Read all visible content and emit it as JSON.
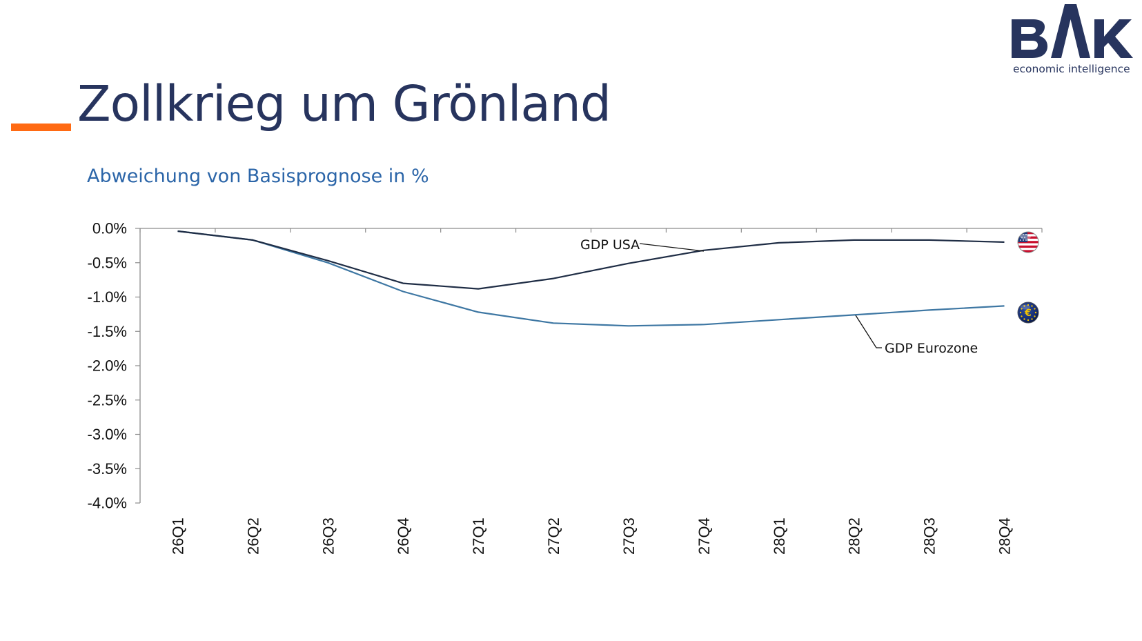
{
  "slide": {
    "title": "Zollkrieg um Grönland",
    "subtitle": "Abweichung von Basisprognose in %",
    "logo": {
      "text": "BAK",
      "tagline": "economic intelligence",
      "color": "#27345e"
    },
    "accent_color": "#ff6a13"
  },
  "chart_data": {
    "type": "line",
    "title": "",
    "xlabel": "",
    "ylabel": "",
    "categories": [
      "26Q1",
      "26Q2",
      "26Q3",
      "26Q4",
      "27Q1",
      "27Q2",
      "27Q3",
      "27Q4",
      "28Q1",
      "28Q2",
      "28Q3",
      "28Q4"
    ],
    "ylim": [
      -4.0,
      0.0
    ],
    "yticks": [
      0.0,
      -0.5,
      -1.0,
      -1.5,
      -2.0,
      -2.5,
      -3.0,
      -3.5,
      -4.0
    ],
    "ytick_labels": [
      "0.0%",
      "-0.5%",
      "-1.0%",
      "-1.5%",
      "-2.0%",
      "-2.5%",
      "-3.0%",
      "-3.5%",
      "-4.0%"
    ],
    "grid": false,
    "legend": "none (direct labels)",
    "series": [
      {
        "name": "GDP USA",
        "color": "#1f2d45",
        "marker_icon": "us-flag-icon",
        "values": [
          -0.04,
          -0.17,
          -0.47,
          -0.8,
          -0.88,
          -0.73,
          -0.51,
          -0.32,
          -0.21,
          -0.17,
          -0.17,
          -0.2
        ]
      },
      {
        "name": "GDP Eurozone",
        "color": "#3e77a3",
        "marker_icon": "eu-euro-icon",
        "values": [
          -0.04,
          -0.17,
          -0.5,
          -0.92,
          -1.22,
          -1.38,
          -1.42,
          -1.4,
          -1.33,
          -1.26,
          -1.19,
          -1.13
        ]
      }
    ]
  }
}
